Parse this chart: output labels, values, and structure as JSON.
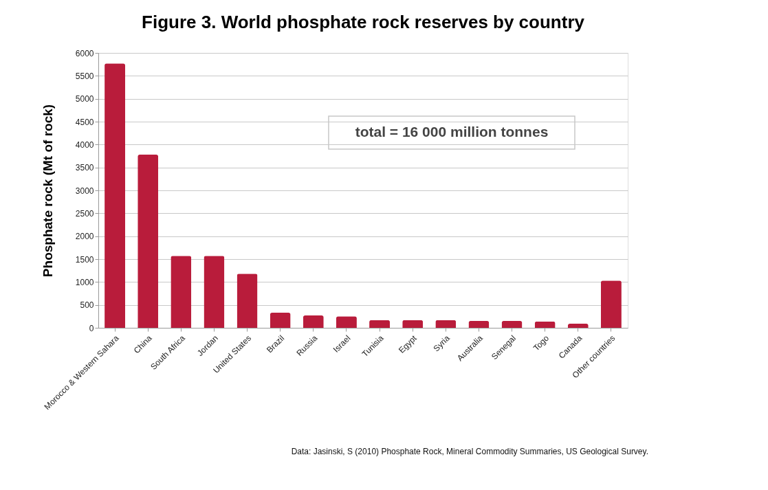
{
  "chart_data": {
    "type": "bar",
    "title": "Figure 3. World phosphate rock reserves by country",
    "ylabel": "Phosphate rock  (Mt of rock)",
    "categories": [
      "Morocco & Western Sahara",
      "China",
      "South Africa",
      "Jordan",
      "United States",
      "Brazil",
      "Russia",
      "Israel",
      "Tunisia",
      "Egypt",
      "Syria",
      "Australia",
      "Senegal",
      "Togo",
      "Canada",
      "Other countries"
    ],
    "values": [
      5770,
      3780,
      1570,
      1570,
      1180,
      330,
      270,
      250,
      170,
      170,
      170,
      150,
      150,
      140,
      90,
      1030
    ],
    "color": "#b91c3b",
    "ylim": [
      0,
      6000
    ],
    "yticks": [
      0,
      500,
      1000,
      1500,
      2000,
      2500,
      3000,
      3500,
      4000,
      4500,
      5000,
      5500,
      6000
    ],
    "grid": "y",
    "annotations": [
      "total = 16 000 million tonnes",
      "Data: Jasinski, S (2010) Phosphate Rock, Mineral Commodity Summaries, US Geological Survey."
    ]
  }
}
